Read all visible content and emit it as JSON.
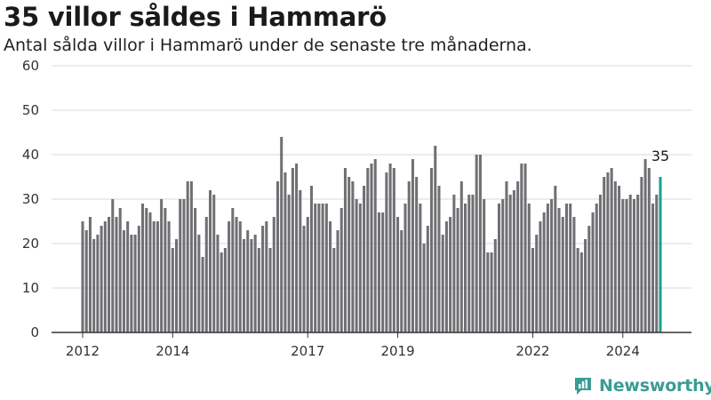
{
  "title": "35 villor såldes i Hammarö",
  "subtitle": "Antal sålda villor i Hammarö under de senaste tre månaderna.",
  "brand": {
    "name": "Newsworthy",
    "icon": "newsworthy-logo-icon"
  },
  "colors": {
    "bar": "#706f73",
    "highlight": "#1f9e8f",
    "grid": "#d9d9d9",
    "axis": "#333333",
    "brand": "#3a9c93"
  },
  "chart_data": {
    "type": "bar",
    "title": "35 villor såldes i Hammarö",
    "subtitle": "Antal sålda villor i Hammarö under de senaste tre månaderna.",
    "xlabel": "",
    "ylabel": "",
    "ylim": [
      0,
      60
    ],
    "yticks": [
      0,
      10,
      20,
      30,
      40,
      50,
      60
    ],
    "xticks": [
      "2012",
      "2014",
      "2017",
      "2019",
      "2022",
      "2024"
    ],
    "grid": true,
    "legend": "none",
    "frequency": "monthly, rolling three-month total",
    "values": [
      25,
      23,
      26,
      21,
      22,
      24,
      25,
      26,
      30,
      26,
      28,
      23,
      25,
      22,
      22,
      24,
      29,
      28,
      27,
      25,
      25,
      30,
      28,
      25,
      19,
      21,
      30,
      30,
      34,
      34,
      28,
      22,
      17,
      26,
      32,
      31,
      22,
      18,
      19,
      25,
      28,
      26,
      25,
      21,
      23,
      21,
      22,
      19,
      24,
      25,
      19,
      26,
      34,
      44,
      36,
      31,
      37,
      38,
      32,
      24,
      26,
      33,
      29,
      29,
      29,
      29,
      25,
      19,
      23,
      28,
      37,
      35,
      34,
      30,
      29,
      33,
      37,
      38,
      39,
      27,
      27,
      36,
      38,
      37,
      26,
      23,
      29,
      34,
      39,
      35,
      29,
      20,
      24,
      37,
      42,
      33,
      22,
      25,
      26,
      31,
      28,
      34,
      29,
      31,
      31,
      40,
      40,
      30,
      18,
      18,
      21,
      29,
      30,
      34,
      31,
      32,
      34,
      38,
      38,
      29,
      19,
      22,
      25,
      27,
      29,
      30,
      33,
      28,
      26,
      29,
      29,
      26,
      19,
      18,
      21,
      24,
      27,
      29,
      31,
      35,
      36,
      37,
      34,
      33,
      30,
      30,
      31,
      30,
      31,
      35,
      39,
      37,
      29,
      31,
      35
    ],
    "last_value_label": "35"
  }
}
